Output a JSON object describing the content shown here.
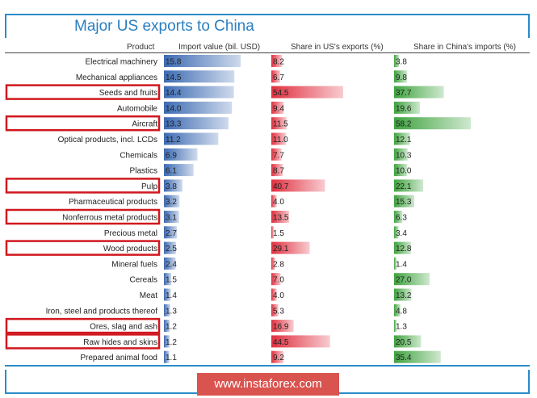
{
  "title": "Major US exports to China",
  "watermark": "www.instaforex.com",
  "colors": {
    "blue": "#3d6bb3",
    "red": "#e03040",
    "green": "#3fa33f",
    "highlight": "#d0181e",
    "accent": "#2a8cc8"
  },
  "chart_data": {
    "type": "table",
    "title": "Major US exports to China",
    "columns": [
      "Product",
      "Import value (bil. USD)",
      "Share in US's exports (%)",
      "Share in China's imports (%)"
    ],
    "rows": [
      {
        "product": "Electrical machinery",
        "import_value": 15.8,
        "us_share": 8.2,
        "china_share": 3.8,
        "highlighted": false
      },
      {
        "product": "Mechanical appliances",
        "import_value": 14.5,
        "us_share": 6.7,
        "china_share": 9.8,
        "highlighted": false
      },
      {
        "product": "Seeds and fruits",
        "import_value": 14.4,
        "us_share": 54.5,
        "china_share": 37.7,
        "highlighted": true
      },
      {
        "product": "Automobile",
        "import_value": 14.0,
        "us_share": 9.4,
        "china_share": 19.6,
        "highlighted": false
      },
      {
        "product": "Aircraft",
        "import_value": 13.3,
        "us_share": 11.5,
        "china_share": 58.2,
        "highlighted": true
      },
      {
        "product": "Optical products, incl. LCDs",
        "import_value": 11.2,
        "us_share": 11.0,
        "china_share": 12.1,
        "highlighted": false
      },
      {
        "product": "Chemicals",
        "import_value": 6.9,
        "us_share": 7.7,
        "china_share": 10.3,
        "highlighted": false
      },
      {
        "product": "Plastics",
        "import_value": 6.1,
        "us_share": 8.7,
        "china_share": 10.0,
        "highlighted": false
      },
      {
        "product": "Pulp",
        "import_value": 3.8,
        "us_share": 40.7,
        "china_share": 22.1,
        "highlighted": true
      },
      {
        "product": "Pharmaceutical products",
        "import_value": 3.2,
        "us_share": 4.0,
        "china_share": 15.3,
        "highlighted": false
      },
      {
        "product": "Nonferrous metal products",
        "import_value": 3.1,
        "us_share": 13.5,
        "china_share": 6.3,
        "highlighted": true
      },
      {
        "product": "Precious metal",
        "import_value": 2.7,
        "us_share": 1.5,
        "china_share": 3.4,
        "highlighted": false
      },
      {
        "product": "Wood products",
        "import_value": 2.5,
        "us_share": 29.1,
        "china_share": 12.8,
        "highlighted": true
      },
      {
        "product": "Mineral fuels",
        "import_value": 2.4,
        "us_share": 2.8,
        "china_share": 1.4,
        "highlighted": false
      },
      {
        "product": "Cereals",
        "import_value": 1.5,
        "us_share": 7.0,
        "china_share": 27.0,
        "highlighted": false
      },
      {
        "product": "Meat",
        "import_value": 1.4,
        "us_share": 4.0,
        "china_share": 13.2,
        "highlighted": false
      },
      {
        "product": "Iron, steel and products thereof",
        "import_value": 1.3,
        "us_share": 5.3,
        "china_share": 4.8,
        "highlighted": false
      },
      {
        "product": "Ores, slag and ash",
        "import_value": 1.2,
        "us_share": 16.9,
        "china_share": 1.3,
        "highlighted": true
      },
      {
        "product": "Raw hides and skins",
        "import_value": 1.2,
        "us_share": 44.5,
        "china_share": 20.5,
        "highlighted": true
      },
      {
        "product": "Prepared animal food",
        "import_value": 1.1,
        "us_share": 9.2,
        "china_share": 35.4,
        "highlighted": false
      }
    ]
  }
}
